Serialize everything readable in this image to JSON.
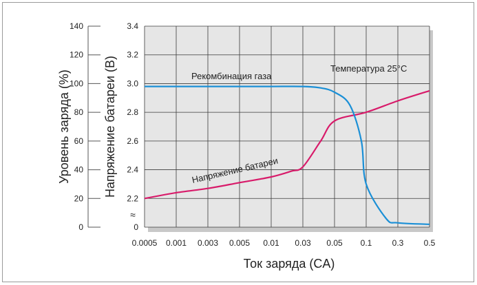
{
  "chart_data": {
    "type": "line",
    "title": "",
    "xlabel": "Ток заряда (CA)",
    "ylabel_left_outer": "Уровень заряда (%)",
    "ylabel_left_inner": "Напряжение батареи (В)",
    "x_tick_labels": [
      "0.0005",
      "0.001",
      "0.003",
      "0.005",
      "0.01",
      "0.03",
      "0.05",
      "0.1",
      "0.3",
      "0.5"
    ],
    "y_charge_ticks": [
      "140",
      "120",
      "100",
      "80",
      "60",
      "40",
      "20",
      "0"
    ],
    "y_voltage_ticks": [
      "3.4",
      "3.2",
      "3.0",
      "2.8",
      "2.6",
      "2.4",
      "2.2",
      "0"
    ],
    "ylim_voltage": [
      2.2,
      3.4
    ],
    "ylim_charge": [
      0,
      140
    ],
    "axis_break_symbol": "≈",
    "annotations": [
      {
        "text": "Рекомбинация газа",
        "series": "charge"
      },
      {
        "text": "Температура 25°C",
        "series": "none"
      },
      {
        "text": "Напряжение батареи",
        "series": "voltage"
      }
    ],
    "grid": true,
    "series": [
      {
        "name": "Рекомбинация газа",
        "axis": "charge",
        "color": "#1a8fd6",
        "x": [
          "0.0005",
          "0.001",
          "0.003",
          "0.005",
          "0.01",
          "0.03",
          "0.04",
          "0.05",
          "0.07",
          "0.09",
          "0.1",
          "0.2",
          "0.3",
          "0.5"
        ],
        "y": [
          98,
          98,
          98,
          98,
          98,
          98,
          97,
          94,
          85,
          60,
          30,
          6,
          3,
          2
        ]
      },
      {
        "name": "Напряжение батареи",
        "axis": "voltage",
        "color": "#d81b6a",
        "x": [
          "0.0005",
          "0.001",
          "0.003",
          "0.005",
          "0.01",
          "0.02",
          "0.03",
          "0.04",
          "0.05",
          "0.1",
          "0.3",
          "0.5"
        ],
        "y": [
          2.2,
          2.24,
          2.27,
          2.31,
          2.35,
          2.39,
          2.42,
          2.6,
          2.74,
          2.8,
          2.88,
          2.95
        ]
      }
    ]
  }
}
